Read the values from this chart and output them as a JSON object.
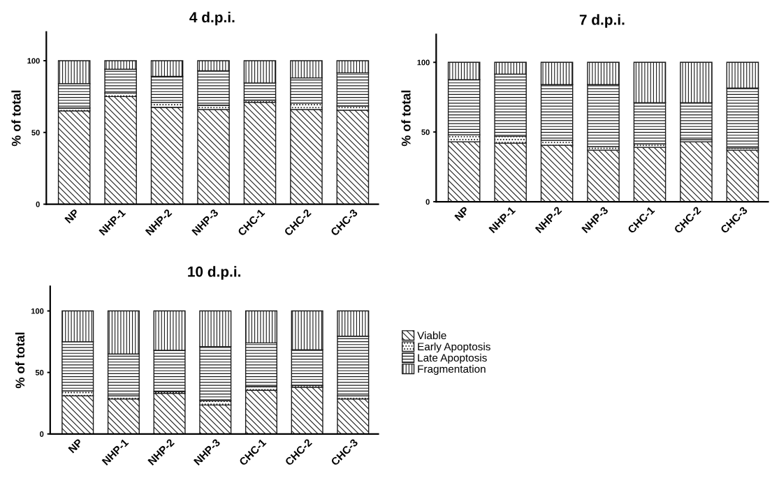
{
  "chart_data": [
    {
      "type": "bar",
      "title": "4 d.p.i.",
      "ylabel": "% of total",
      "stacked": true,
      "categories": [
        "NP",
        "NHP-1",
        "NHP-2",
        "NHP-3",
        "CHC-1",
        "CHC-2",
        "CHC-3"
      ],
      "ylim": [
        0,
        120
      ],
      "yticks": [
        0,
        50,
        100
      ],
      "grid": false,
      "legend": false,
      "series": [
        {
          "color": "#1a1a1a",
          "values": [
            65,
            75,
            67.5,
            66,
            71,
            66,
            65.5
          ]
        },
        {
          "color": "#1a1a1a",
          "values": [
            2,
            2.5,
            3.5,
            3,
            1.5,
            4.5,
            3
          ]
        },
        {
          "color": "#1a1a1a",
          "values": [
            17,
            16.5,
            18,
            24,
            12,
            17.5,
            23
          ]
        },
        {
          "color": "#1a1a1a",
          "values": [
            16,
            6,
            11,
            7,
            15.5,
            12,
            8.5
          ]
        }
      ]
    },
    {
      "type": "bar",
      "title": "7 d.p.i.",
      "ylabel": "% of total",
      "stacked": true,
      "categories": [
        "NP",
        "NHP-1",
        "NHP-2",
        "NHP-3",
        "CHC-1",
        "CHC-2",
        "CHC-3"
      ],
      "ylim": [
        0,
        120
      ],
      "yticks": [
        0,
        50,
        100
      ],
      "grid": false,
      "legend": false,
      "series": [
        {
          "color": "#1a1a1a",
          "values": [
            43,
            42,
            40.5,
            37,
            39,
            43,
            37
          ]
        },
        {
          "color": "#1a1a1a",
          "values": [
            5,
            5,
            3.5,
            2.5,
            2.5,
            1.5,
            1.5
          ]
        },
        {
          "color": "#1a1a1a",
          "values": [
            39.5,
            44.5,
            40,
            44.5,
            29.5,
            26.5,
            43
          ]
        },
        {
          "color": "#1a1a1a",
          "values": [
            12.5,
            8.5,
            16,
            16,
            29,
            29,
            18.5
          ]
        }
      ]
    },
    {
      "type": "bar",
      "title": "10 d.p.i.",
      "ylabel": "% of total",
      "stacked": true,
      "categories": [
        "NP",
        "NHP-1",
        "NHP-2",
        "NHP-3",
        "CHC-1",
        "CHC-2",
        "CHC-3"
      ],
      "ylim": [
        0,
        120
      ],
      "yticks": [
        0,
        50,
        100
      ],
      "grid": false,
      "legend": "right",
      "series": [
        {
          "name": "Viable",
          "color": "#1a1a1a",
          "values": [
            31,
            28.5,
            33,
            23.5,
            35.5,
            38,
            28.5
          ]
        },
        {
          "name": "Early Apoptosis",
          "color": "#1a1a1a",
          "values": [
            4,
            2.5,
            1.5,
            3.5,
            3,
            1.5,
            2.5
          ]
        },
        {
          "name": "Late Apoptosis",
          "color": "#1a1a1a",
          "values": [
            40,
            34,
            33.5,
            44,
            35.5,
            29,
            48.5
          ]
        },
        {
          "name": "Fragmentation",
          "color": "#1a1a1a",
          "values": [
            25,
            35,
            32,
            29,
            26,
            31.5,
            20.5
          ]
        }
      ]
    }
  ]
}
